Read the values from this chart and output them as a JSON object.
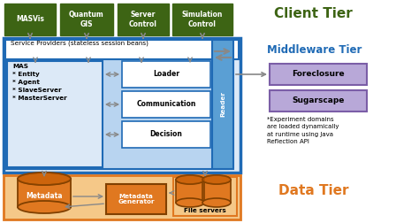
{
  "fig_width": 4.74,
  "fig_height": 2.52,
  "dpi": 100,
  "bg_color": "#ffffff",
  "dark_green": "#3d6414",
  "blue_border": "#1f6ab5",
  "light_blue_fill": "#dce9f7",
  "mid_blue_fill": "#5a9fd4",
  "inner_blue": "#b8d4f0",
  "orange": "#e07820",
  "orange_light": "#f5c888",
  "purple_fill": "#b8a8d8",
  "purple_border": "#7b5ea7",
  "arrow_gray": "#888888",
  "white": "#ffffff",
  "client_tier_label": "Client Tier",
  "middleware_tier_label": "Middleware Tier",
  "data_tier_label": "Data Tier",
  "client_boxes": [
    "MASVis",
    "Quantum\nGIS",
    "Server\nControl",
    "Simulation\nControl"
  ],
  "service_provider_label": "Service Providers (stateless session beans)",
  "mas_label": "MAS\n* Entity\n* Agent\n* SlaveServer\n* MasterServer",
  "loader_label": "Loader",
  "communication_label": "Communication",
  "decision_label": "Decision",
  "reader_label": "Reader",
  "metadata_label": "Metadata",
  "metadata_gen_label": "Metadata\nGenerator",
  "file_servers_label": "File servers",
  "foreclosure_label": "Foreclosure",
  "sugarscape_label": "Sugarscape",
  "note_label": "*Experiment domains\nare loaded dynamically\nat runtime using Java\nReflection API"
}
